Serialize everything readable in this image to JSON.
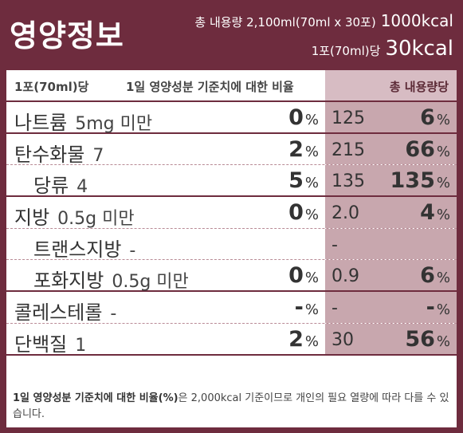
{
  "header": {
    "title": "영양정보",
    "total_content_label": "총 내용량 2,100ml(70ml x 30포)",
    "total_kcal": "1000kcal",
    "serving_label": "1포(70ml)당",
    "serving_kcal": "30kcal"
  },
  "table_header": {
    "serving": "1포(70ml)당",
    "daily_ratio": "1일 영양성분 기준치에 대한 비율",
    "total": "총 내용량당"
  },
  "rows": [
    {
      "name": "나트륨",
      "amount": "5mg 미만",
      "pct": "0",
      "unit": "%",
      "total": "125",
      "total_pct": "6",
      "total_unit": "%"
    },
    {
      "name": "탄수화물",
      "amount": "7",
      "pct": "2",
      "unit": "%",
      "total": "215",
      "total_pct": "66",
      "total_unit": "%"
    },
    {
      "name": "당류",
      "amount": "4",
      "pct": "5",
      "unit": "%",
      "total": "135",
      "total_pct": "135",
      "total_unit": "%"
    },
    {
      "name": "지방",
      "amount": "0.5g 미만",
      "pct": "0",
      "unit": "%",
      "total": "2.0",
      "total_pct": "4",
      "total_unit": "%"
    },
    {
      "name": "트랜스지방",
      "amount": "-",
      "pct": "",
      "unit": "",
      "total": "-",
      "total_pct": "",
      "total_unit": ""
    },
    {
      "name": "포화지방",
      "amount": "0.5g 미만",
      "pct": "0",
      "unit": "%",
      "total": "0.9",
      "total_pct": "6",
      "total_unit": "%"
    },
    {
      "name": "콜레스테롤",
      "amount": "-",
      "pct": "-",
      "unit": "%",
      "total": "-",
      "total_pct": "-",
      "total_unit": "%"
    },
    {
      "name": "단백질",
      "amount": "1",
      "pct": "2",
      "unit": "%",
      "total": "30",
      "total_pct": "56",
      "total_unit": "%"
    }
  ],
  "footnote": {
    "bold": "1일 영양성분 기준치에 대한 비율(%)",
    "text": "은 2,000kcal 기준이므로 개인의 필요 열량에 따라 다를 수 있습니다."
  }
}
